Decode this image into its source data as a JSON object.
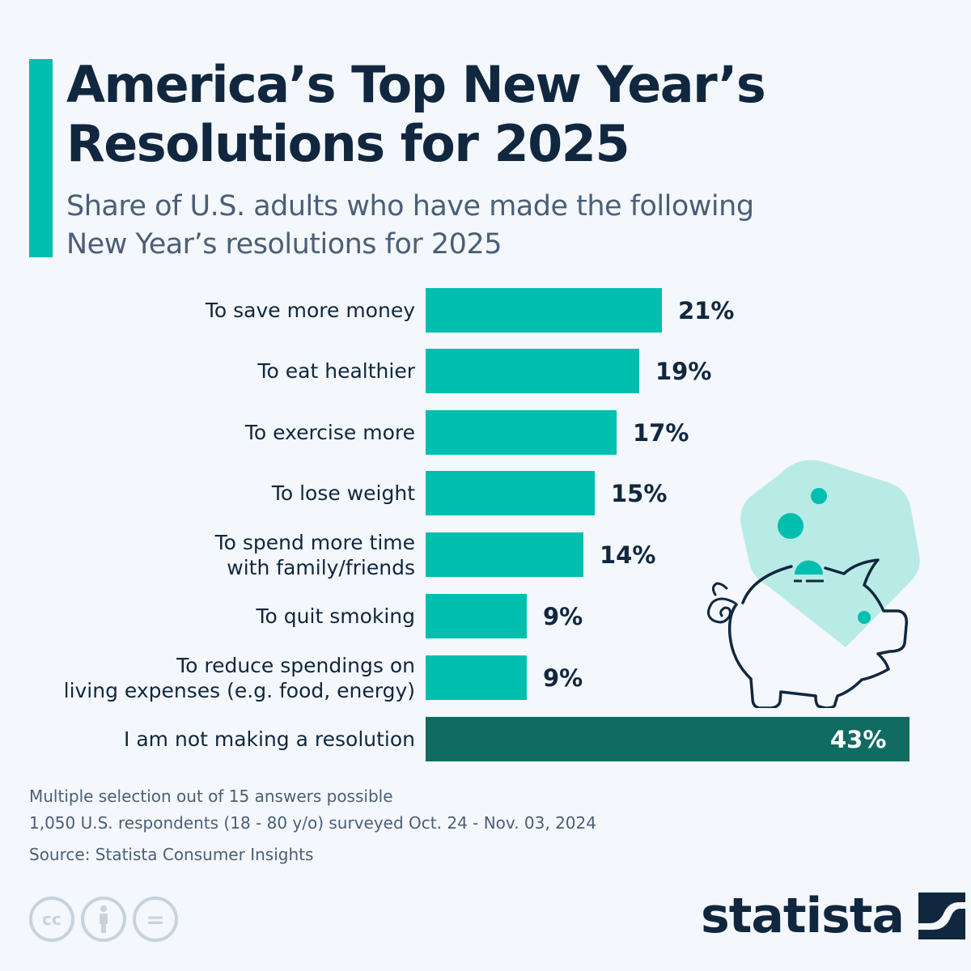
{
  "header": {
    "title_line1": "America’s Top New Year’s",
    "title_line2": "Resolutions for 2025",
    "subtitle_line1": "Share of U.S. adults who have made the following",
    "subtitle_line2": "New Year’s resolutions for 2025"
  },
  "colors": {
    "accent": "#00bfae",
    "bar": "#00bfae",
    "highlight_bar": "#106b60",
    "text": "#10273f",
    "muted_text": "#4a5f78",
    "background": "#f4f7fb",
    "illustration_bg": "#b9ebe6"
  },
  "chart_data": {
    "type": "bar",
    "orientation": "horizontal",
    "title": "America’s Top New Year’s Resolutions for 2025",
    "subtitle": "Share of U.S. adults who have made the following New Year’s resolutions for 2025",
    "categories": [
      "To save more money",
      "To eat healthier",
      "To exercise more",
      "To lose weight",
      "To spend more time with family/friends",
      "To quit smoking",
      "To reduce spendings on living expenses (e.g. food, energy)",
      "I am not making a resolution"
    ],
    "values": [
      21,
      19,
      17,
      15,
      14,
      9,
      9,
      43
    ],
    "unit": "%",
    "xlabel": "",
    "ylabel": "",
    "xlim": [
      0,
      43
    ],
    "grid": false,
    "legend": "none",
    "highlighted_category": "I am not making a resolution"
  },
  "rows": [
    {
      "label": "To save more money",
      "value": "21%",
      "pct": 21
    },
    {
      "label": "To eat healthier",
      "value": "19%",
      "pct": 19
    },
    {
      "label": "To exercise more",
      "value": "17%",
      "pct": 17
    },
    {
      "label": "To lose weight",
      "value": "15%",
      "pct": 15
    },
    {
      "label": "To spend more time\nwith family/friends",
      "value": "14%",
      "pct": 14
    },
    {
      "label": "To quit smoking",
      "value": "9%",
      "pct": 9
    },
    {
      "label": "To reduce spendings on\nliving expenses (e.g. food, energy)",
      "value": "9%",
      "pct": 9
    },
    {
      "label": "I am not making a resolution",
      "value": "43%",
      "pct": 43,
      "highlight": true
    }
  ],
  "notes": {
    "line1": "Multiple selection out of 15 answers possible",
    "line2": "1,050 U.S. respondents (18 - 80 y/o) surveyed Oct. 24 - Nov. 03, 2024",
    "source": "Source: Statista Consumer Insights"
  },
  "license_icons": [
    "cc-icon",
    "attribution-icon",
    "no-derivatives-icon"
  ],
  "license_glyphs": {
    "cc": "cc",
    "nd": "="
  },
  "brand": {
    "logo_text": "statista"
  }
}
